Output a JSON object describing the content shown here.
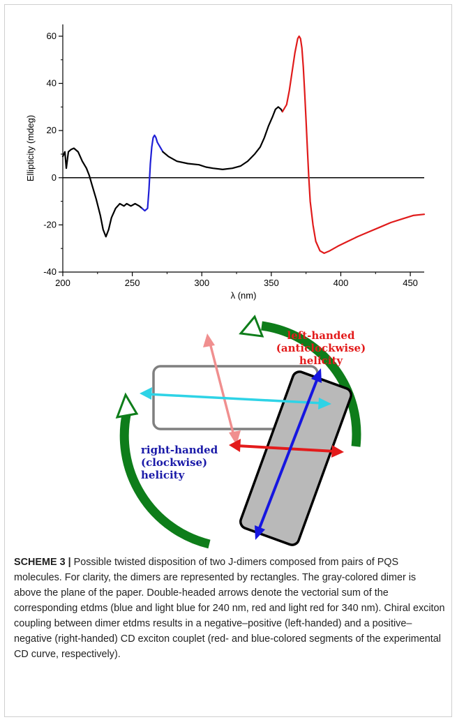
{
  "chart_data": {
    "type": "line",
    "xlabel": "λ (nm)",
    "ylabel": "Ellipticity (mdeg)",
    "xlim": [
      200,
      460
    ],
    "ylim": [
      -40,
      65
    ],
    "x_ticks": [
      200,
      250,
      300,
      350,
      400,
      450
    ],
    "y_ticks": [
      -40,
      -20,
      0,
      20,
      40,
      60
    ],
    "zero_line": true,
    "colors": {
      "black": "#000000",
      "blue": "#1f1fd6",
      "red": "#e01b1b"
    },
    "segments": [
      {
        "color": "black",
        "points": [
          [
            200,
            9
          ],
          [
            201.5,
            11
          ],
          [
            202.5,
            4
          ],
          [
            204,
            11
          ],
          [
            206,
            12
          ],
          [
            208,
            12.5
          ],
          [
            211,
            11
          ],
          [
            214,
            7
          ],
          [
            217,
            4
          ],
          [
            219,
            1
          ],
          [
            221,
            -3
          ],
          [
            224,
            -9
          ],
          [
            227,
            -16
          ],
          [
            229,
            -22
          ],
          [
            231,
            -25
          ],
          [
            233,
            -22
          ],
          [
            235,
            -17
          ],
          [
            238,
            -13
          ],
          [
            241,
            -11
          ],
          [
            244,
            -12
          ],
          [
            246,
            -11
          ],
          [
            249,
            -12
          ],
          [
            252,
            -11
          ],
          [
            255,
            -12
          ],
          [
            257,
            -13
          ]
        ]
      },
      {
        "color": "blue",
        "points": [
          [
            257,
            -13
          ],
          [
            259,
            -14
          ],
          [
            261,
            -13
          ],
          [
            262,
            -5
          ],
          [
            263,
            6
          ],
          [
            264,
            13
          ],
          [
            265,
            17
          ],
          [
            266,
            18
          ],
          [
            267,
            17
          ],
          [
            268,
            15
          ],
          [
            270,
            13
          ],
          [
            272,
            11
          ]
        ]
      },
      {
        "color": "black",
        "points": [
          [
            272,
            11
          ],
          [
            276,
            9
          ],
          [
            282,
            7
          ],
          [
            290,
            6
          ],
          [
            298,
            5.5
          ],
          [
            303,
            4.5
          ],
          [
            308,
            4
          ],
          [
            315,
            3.5
          ],
          [
            322,
            4
          ],
          [
            328,
            5
          ],
          [
            333,
            7
          ],
          [
            338,
            10
          ],
          [
            342,
            13
          ],
          [
            345,
            17
          ],
          [
            348,
            22
          ],
          [
            351,
            26
          ],
          [
            353,
            29
          ],
          [
            355,
            30
          ],
          [
            357,
            29
          ],
          [
            358,
            28
          ]
        ]
      },
      {
        "color": "red",
        "points": [
          [
            358,
            28
          ],
          [
            361,
            31
          ],
          [
            363,
            37
          ],
          [
            365,
            45
          ],
          [
            367,
            53
          ],
          [
            369,
            59
          ],
          [
            370,
            60
          ],
          [
            371,
            59
          ],
          [
            372,
            55
          ],
          [
            373,
            47
          ],
          [
            374,
            36
          ],
          [
            375,
            24
          ],
          [
            376,
            12
          ],
          [
            377,
            0
          ],
          [
            378,
            -10
          ],
          [
            380,
            -20
          ],
          [
            382,
            -27
          ],
          [
            385,
            -31
          ],
          [
            388,
            -32
          ],
          [
            392,
            -31
          ],
          [
            398,
            -29
          ],
          [
            405,
            -27
          ],
          [
            412,
            -25
          ],
          [
            420,
            -23
          ],
          [
            428,
            -21
          ],
          [
            436,
            -19
          ],
          [
            444,
            -17.5
          ],
          [
            452,
            -16
          ],
          [
            460,
            -15.5
          ]
        ]
      }
    ]
  },
  "scheme": {
    "left_helicity": "left-handed\n(anticlockwise)\nhelicity",
    "right_helicity": "right-handed\n(clockwise)\nhelicity"
  },
  "caption": {
    "label": "SCHEME 3 |",
    "text": "Possible twisted disposition of two J-dimers composed from pairs of PQS molecules. For clarity, the dimers are represented by rectangles. The gray-colored dimer is above the plane of the paper. Double-headed arrows denote the vectorial sum of the corresponding etdms (blue and light blue for 240 nm, red and light red for 340 nm). Chiral exciton coupling between dimer etdms results in a negative–positive (left-handed) and a positive–negative (right-handed) CD exciton couplet (red- and blue-colored segments of the experimental CD curve, respectively)."
  }
}
